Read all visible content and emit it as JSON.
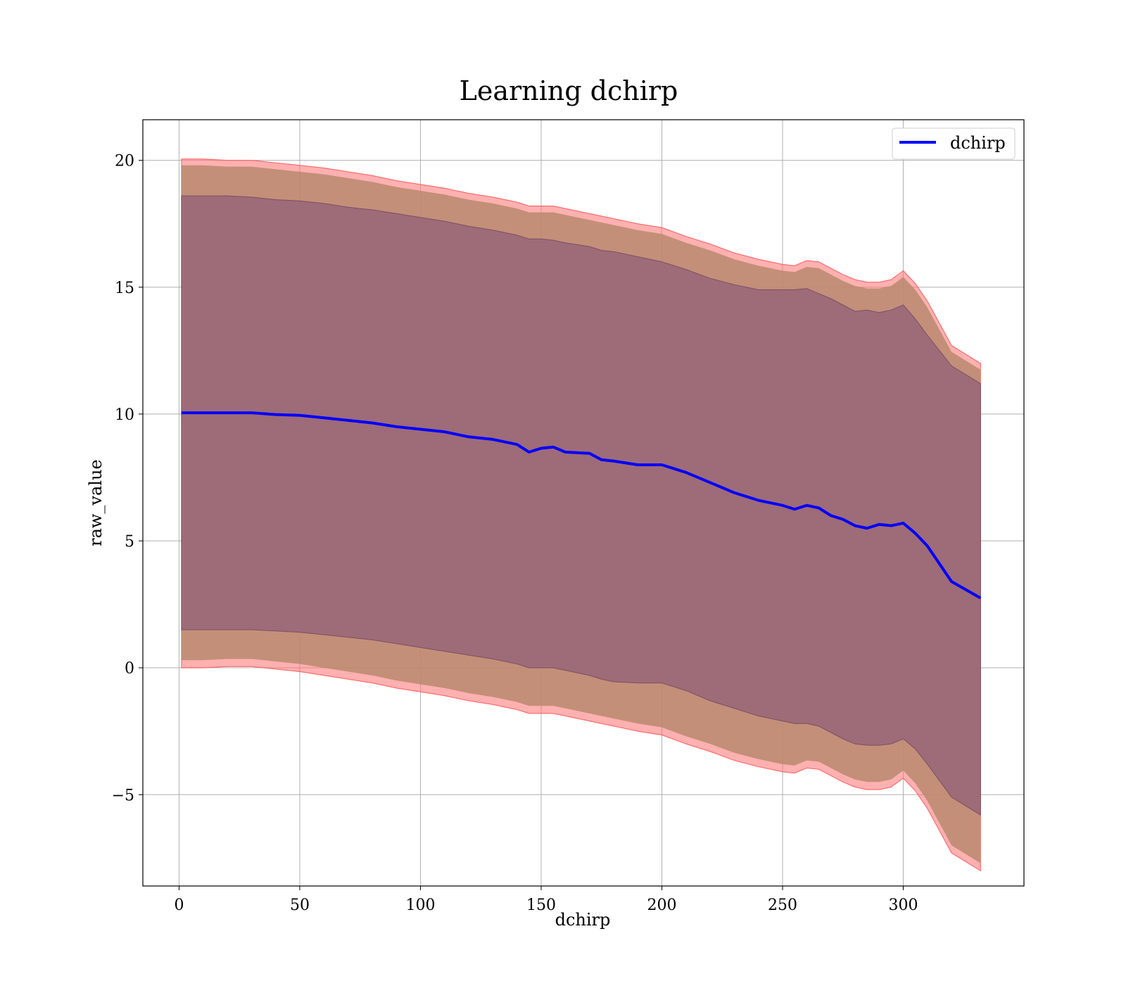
{
  "chart_data": {
    "type": "line",
    "title": "Learning dchirp",
    "xlabel": "dchirp",
    "ylabel": "raw_value",
    "xlim": [
      -15,
      350
    ],
    "ylim": [
      -8.6,
      21.6
    ],
    "xticks": [
      0,
      50,
      100,
      150,
      200,
      250,
      300
    ],
    "yticks": [
      -5,
      0,
      5,
      10,
      15,
      20
    ],
    "ytick_labels": [
      "−5",
      "0",
      "5",
      "10",
      "15",
      "20"
    ],
    "grid": true,
    "legend": {
      "position": "top-right",
      "entries": [
        "dchirp"
      ]
    },
    "series": [
      {
        "name": "dchirp",
        "color": "#0000ff",
        "x": [
          1,
          10,
          20,
          30,
          40,
          50,
          60,
          70,
          80,
          90,
          100,
          110,
          120,
          130,
          140,
          145,
          150,
          155,
          160,
          170,
          175,
          180,
          190,
          200,
          210,
          220,
          230,
          240,
          250,
          255,
          260,
          265,
          270,
          275,
          280,
          285,
          290,
          295,
          300,
          305,
          310,
          320,
          332
        ],
        "y": [
          10.05,
          10.05,
          10.05,
          10.05,
          9.98,
          9.95,
          9.85,
          9.75,
          9.65,
          9.5,
          9.4,
          9.3,
          9.1,
          9.0,
          8.8,
          8.5,
          8.65,
          8.7,
          8.5,
          8.45,
          8.2,
          8.15,
          8.0,
          8.0,
          7.7,
          7.3,
          6.9,
          6.6,
          6.4,
          6.25,
          6.4,
          6.3,
          6.0,
          5.85,
          5.6,
          5.5,
          5.65,
          5.6,
          5.7,
          5.3,
          4.8,
          3.4,
          2.75
        ],
        "upper_1": [
          18.6,
          18.6,
          18.6,
          18.55,
          18.45,
          18.4,
          18.3,
          18.15,
          18.05,
          17.9,
          17.75,
          17.6,
          17.4,
          17.25,
          17.05,
          16.9,
          16.9,
          16.85,
          16.75,
          16.6,
          16.45,
          16.4,
          16.2,
          16.0,
          15.7,
          15.35,
          15.1,
          14.9,
          14.9,
          14.9,
          14.95,
          14.75,
          14.55,
          14.3,
          14.05,
          14.1,
          14.0,
          14.1,
          14.3,
          13.75,
          13.1,
          11.9,
          11.2
        ],
        "lower_1": [
          1.5,
          1.5,
          1.5,
          1.5,
          1.45,
          1.4,
          1.3,
          1.2,
          1.1,
          0.95,
          0.8,
          0.65,
          0.5,
          0.35,
          0.15,
          0.0,
          0.0,
          0.0,
          -0.1,
          -0.3,
          -0.45,
          -0.55,
          -0.6,
          -0.6,
          -0.9,
          -1.3,
          -1.6,
          -1.9,
          -2.1,
          -2.2,
          -2.2,
          -2.3,
          -2.55,
          -2.8,
          -3.0,
          -3.05,
          -3.05,
          -3.0,
          -2.8,
          -3.2,
          -3.8,
          -5.1,
          -5.8
        ],
        "upper_2": [
          20.05,
          20.05,
          20.0,
          20.0,
          19.9,
          19.8,
          19.7,
          19.55,
          19.4,
          19.2,
          19.05,
          18.9,
          18.7,
          18.55,
          18.35,
          18.2,
          18.2,
          18.2,
          18.1,
          17.9,
          17.8,
          17.7,
          17.5,
          17.35,
          17.0,
          16.7,
          16.35,
          16.1,
          15.9,
          15.85,
          16.05,
          16.0,
          15.75,
          15.5,
          15.3,
          15.2,
          15.2,
          15.3,
          15.65,
          15.15,
          14.45,
          12.7,
          12.0
        ],
        "lower_2": [
          0.0,
          0.0,
          0.05,
          0.05,
          -0.05,
          -0.15,
          -0.3,
          -0.45,
          -0.6,
          -0.8,
          -0.95,
          -1.1,
          -1.3,
          -1.45,
          -1.65,
          -1.8,
          -1.8,
          -1.8,
          -1.9,
          -2.1,
          -2.2,
          -2.3,
          -2.5,
          -2.65,
          -3.0,
          -3.3,
          -3.65,
          -3.9,
          -4.1,
          -4.15,
          -3.95,
          -4.0,
          -4.25,
          -4.5,
          -4.7,
          -4.8,
          -4.8,
          -4.7,
          -4.35,
          -4.85,
          -5.55,
          -7.3,
          -8.0
        ]
      }
    ]
  }
}
